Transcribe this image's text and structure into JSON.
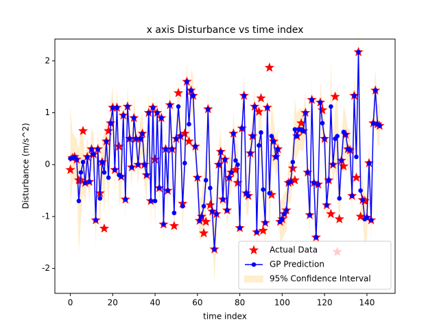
{
  "chart_data": {
    "type": "line",
    "title": "x axis Disturbance vs time index",
    "x_label": "time index",
    "y_label": "Disturbance (m/s^2)",
    "xlim": [
      -7.3,
      153.3
    ],
    "ylim": [
      -2.48,
      2.42
    ],
    "xticks": [
      0,
      20,
      40,
      60,
      80,
      100,
      120,
      140
    ],
    "yticks": [
      -2,
      -1,
      0,
      1,
      2
    ],
    "grid": false,
    "legend": "lower right",
    "x": [
      0,
      1,
      2,
      3,
      4,
      5,
      6,
      7,
      8,
      9,
      10,
      11,
      12,
      13,
      14,
      15,
      16,
      17,
      18,
      19,
      20,
      21,
      22,
      23,
      24,
      25,
      26,
      27,
      28,
      29,
      30,
      31,
      32,
      33,
      34,
      35,
      36,
      37,
      38,
      39,
      40,
      41,
      42,
      43,
      44,
      45,
      46,
      47,
      48,
      49,
      50,
      51,
      52,
      53,
      54,
      55,
      56,
      57,
      58,
      59,
      60,
      61,
      62,
      63,
      64,
      65,
      66,
      67,
      68,
      69,
      70,
      71,
      72,
      73,
      74,
      75,
      76,
      77,
      78,
      79,
      80,
      81,
      82,
      83,
      84,
      85,
      86,
      87,
      88,
      89,
      90,
      91,
      92,
      93,
      94,
      95,
      96,
      97,
      98,
      99,
      100,
      101,
      102,
      103,
      104,
      105,
      106,
      107,
      108,
      109,
      110,
      111,
      112,
      113,
      114,
      115,
      116,
      117,
      118,
      119,
      120,
      121,
      122,
      123,
      124,
      125,
      126,
      127,
      128,
      129,
      130,
      131,
      132,
      133,
      134,
      135,
      136,
      137,
      138,
      139,
      140,
      141,
      142,
      143,
      144,
      145,
      146
    ],
    "series": [
      {
        "name": "Actual Data",
        "kind": "star",
        "color": "#ff0000",
        "values": [
          -0.1,
          0.13,
          0.15,
          0.1,
          -0.3,
          -0.3,
          0.65,
          -0.35,
          0.15,
          -0.33,
          0.3,
          0.2,
          -1.07,
          0.3,
          -0.55,
          0.05,
          -1.23,
          0.45,
          0.65,
          0.8,
          1.1,
          -0.1,
          1.1,
          0.35,
          -0.23,
          0.95,
          -0.67,
          1.12,
          0.5,
          -0.05,
          0.9,
          0.5,
          0.0,
          0.5,
          0.6,
          0.0,
          -0.2,
          1.0,
          -0.7,
          1.1,
          0.1,
          1.0,
          -0.45,
          0.9,
          -1.15,
          0.3,
          -0.5,
          1.15,
          0.3,
          -1.18,
          0.5,
          1.38,
          0.55,
          -0.75,
          0.6,
          1.6,
          0.45,
          1.43,
          1.33,
          0.35,
          -0.25,
          -1.08,
          -1.0,
          -1.32,
          -1.1,
          1.07,
          -0.78,
          -0.9,
          -1.63,
          -0.95,
          0.0,
          0.25,
          -0.67,
          0.1,
          -0.88,
          -0.25,
          -0.15,
          0.6,
          -0.1,
          -0.35,
          -1.22,
          0.7,
          1.33,
          -0.55,
          -0.6,
          0.22,
          0.55,
          1.12,
          -1.3,
          1.02,
          1.28,
          -1.27,
          -1.12,
          1.1,
          1.87,
          -0.58,
          0.45,
          0.15,
          0.3,
          -1.1,
          -1.05,
          -0.95,
          -0.88,
          -0.35,
          -0.33,
          -0.07,
          -0.3,
          0.55,
          0.68,
          0.8,
          0.65,
          1.0,
          -0.15,
          -0.97,
          1.25,
          -0.35,
          -1.4,
          -0.38,
          1.2,
          1.05,
          0.5,
          -0.78,
          -0.3,
          -0.95,
          0.0,
          1.31,
          -1.68,
          -1.05,
          0.08,
          -0.03,
          0.58,
          0.3,
          0.28,
          -0.6,
          1.33,
          -0.25,
          2.17,
          -1.0,
          -0.68,
          -0.7,
          -1.02,
          0.03,
          -1.07,
          0.8,
          1.43,
          0.78,
          0.75
        ]
      },
      {
        "name": "GP Prediction",
        "kind": "line",
        "color": "#0000ff",
        "values": [
          0.12,
          0.13,
          0.15,
          0.1,
          -0.7,
          -0.15,
          0.05,
          -0.35,
          0.15,
          -0.33,
          0.3,
          0.2,
          -1.07,
          0.3,
          -0.65,
          0.05,
          -0.15,
          0.45,
          -0.25,
          0.8,
          1.1,
          -0.1,
          1.1,
          -0.2,
          -0.23,
          0.95,
          -0.67,
          1.12,
          0.5,
          -0.05,
          0.9,
          0.5,
          0.0,
          0.5,
          0.6,
          0.0,
          -0.2,
          1.0,
          -0.7,
          1.1,
          -0.7,
          1.0,
          -0.45,
          0.9,
          -1.15,
          0.3,
          -0.5,
          1.15,
          0.3,
          -0.93,
          0.5,
          1.12,
          0.55,
          -0.8,
          0.03,
          1.6,
          0.78,
          1.43,
          1.33,
          0.35,
          -0.25,
          -1.08,
          -1.0,
          -0.8,
          -0.3,
          1.07,
          -0.45,
          -0.9,
          -1.63,
          -0.95,
          0.0,
          0.25,
          -0.67,
          0.1,
          -0.88,
          -0.25,
          -0.15,
          0.6,
          0.08,
          0.0,
          -1.22,
          0.7,
          1.33,
          -0.55,
          -0.6,
          0.22,
          0.55,
          1.12,
          -1.3,
          0.37,
          0.62,
          -0.48,
          -1.12,
          1.1,
          -0.55,
          0.55,
          0.45,
          0.15,
          0.3,
          -1.1,
          -1.05,
          -0.95,
          -0.88,
          -0.35,
          -0.33,
          0.05,
          0.68,
          0.55,
          0.68,
          0.68,
          0.65,
          1.0,
          -0.15,
          -0.97,
          1.25,
          -0.35,
          -1.4,
          -0.38,
          1.2,
          0.8,
          0.5,
          -0.78,
          -0.3,
          1.12,
          0.0,
          0.5,
          0.55,
          -0.65,
          0.08,
          0.63,
          0.58,
          0.3,
          0.28,
          -0.6,
          1.33,
          0.15,
          2.17,
          -0.5,
          -0.68,
          -1.05,
          -1.02,
          0.03,
          -1.07,
          0.8,
          1.43,
          0.78,
          0.75
        ]
      },
      {
        "name": "95% Confidence Interval",
        "kind": "band",
        "of": 1,
        "color": "#ffa500",
        "values": [
          1.0,
          0.5,
          0.4,
          0.4,
          1.0,
          0.9,
          0.6,
          0.4,
          0.4,
          0.4,
          0.4,
          0.4,
          0.5,
          0.4,
          0.6,
          0.4,
          0.8,
          0.4,
          0.7,
          0.4,
          0.4,
          0.5,
          0.4,
          0.6,
          0.4,
          0.4,
          0.4,
          0.4,
          0.4,
          0.4,
          0.4,
          0.4,
          0.4,
          0.4,
          0.4,
          0.4,
          0.5,
          0.4,
          0.5,
          0.4,
          0.6,
          0.4,
          0.4,
          0.4,
          0.4,
          0.4,
          0.4,
          0.4,
          0.4,
          0.5,
          0.4,
          0.5,
          0.4,
          0.5,
          0.5,
          0.4,
          0.5,
          0.4,
          0.4,
          0.4,
          0.4,
          0.4,
          0.4,
          0.6,
          0.6,
          0.4,
          0.6,
          0.4,
          0.6,
          0.5,
          0.4,
          0.4,
          0.4,
          0.4,
          0.4,
          0.4,
          0.4,
          0.4,
          0.4,
          0.4,
          0.4,
          0.4,
          0.4,
          0.4,
          0.4,
          0.4,
          0.4,
          0.4,
          0.4,
          0.6,
          0.6,
          0.6,
          0.4,
          0.4,
          0.9,
          0.7,
          0.4,
          0.4,
          0.4,
          0.4,
          0.4,
          0.4,
          0.4,
          0.4,
          0.4,
          0.4,
          0.6,
          0.4,
          0.4,
          0.4,
          0.4,
          0.4,
          0.4,
          0.4,
          0.4,
          0.4,
          0.4,
          0.4,
          0.4,
          0.4,
          0.4,
          0.4,
          0.4,
          0.9,
          0.4,
          0.6,
          1.0,
          0.6,
          0.4,
          0.5,
          0.4,
          0.4,
          0.4,
          0.4,
          0.4,
          0.4,
          0.4,
          0.5,
          0.4,
          0.5,
          0.4,
          0.4,
          0.4,
          0.4,
          0.4,
          0.4,
          0.4
        ]
      }
    ]
  }
}
